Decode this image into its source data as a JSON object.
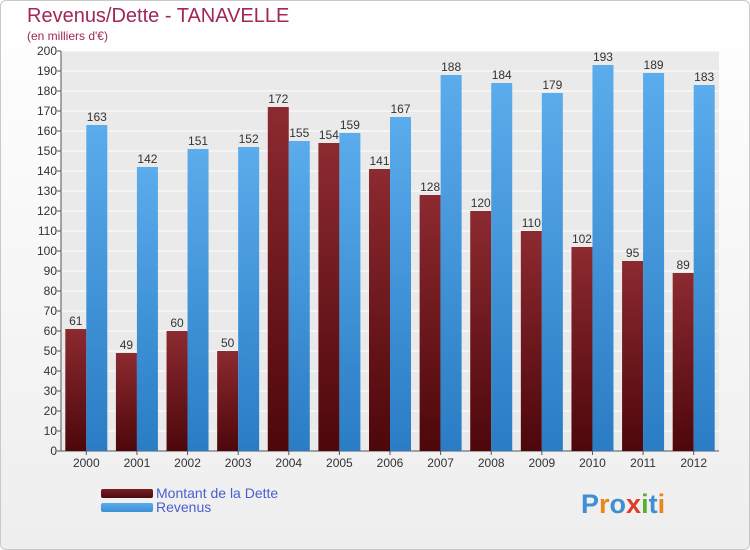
{
  "title": "Revenus/Dette - TANAVELLE",
  "subtitle": "(en milliers d'€)",
  "logo": {
    "text": "Proxiti",
    "letters": [
      {
        "ch": "P",
        "color": "#3f8fd2"
      },
      {
        "ch": "r",
        "color": "#e8861a"
      },
      {
        "ch": "o",
        "color": "#3f8fd2"
      },
      {
        "ch": "x",
        "color": "#e23a2a"
      },
      {
        "ch": "i",
        "color": "#5ab02a"
      },
      {
        "ch": "t",
        "color": "#3f8fd2"
      },
      {
        "ch": "i",
        "color": "#e8861a"
      }
    ]
  },
  "colors": {
    "dette": "#7a1d22",
    "revenus": "#3d8fd6",
    "title": "#a0275a",
    "legend_text": "#4a5fd0"
  },
  "chart_data": {
    "type": "bar",
    "categories": [
      "2000",
      "2001",
      "2002",
      "2003",
      "2004",
      "2005",
      "2006",
      "2007",
      "2008",
      "2009",
      "2010",
      "2011",
      "2012"
    ],
    "series": [
      {
        "name": "Montant de la Dette",
        "values": [
          61,
          49,
          60,
          50,
          172,
          154,
          141,
          128,
          120,
          110,
          102,
          95,
          89
        ]
      },
      {
        "name": "Revenus",
        "values": [
          163,
          142,
          151,
          152,
          155,
          159,
          167,
          188,
          184,
          179,
          193,
          189,
          183
        ]
      }
    ],
    "ylim": [
      0,
      200
    ],
    "ytick_step": 10,
    "grid": true,
    "legend": "bottom-left"
  }
}
